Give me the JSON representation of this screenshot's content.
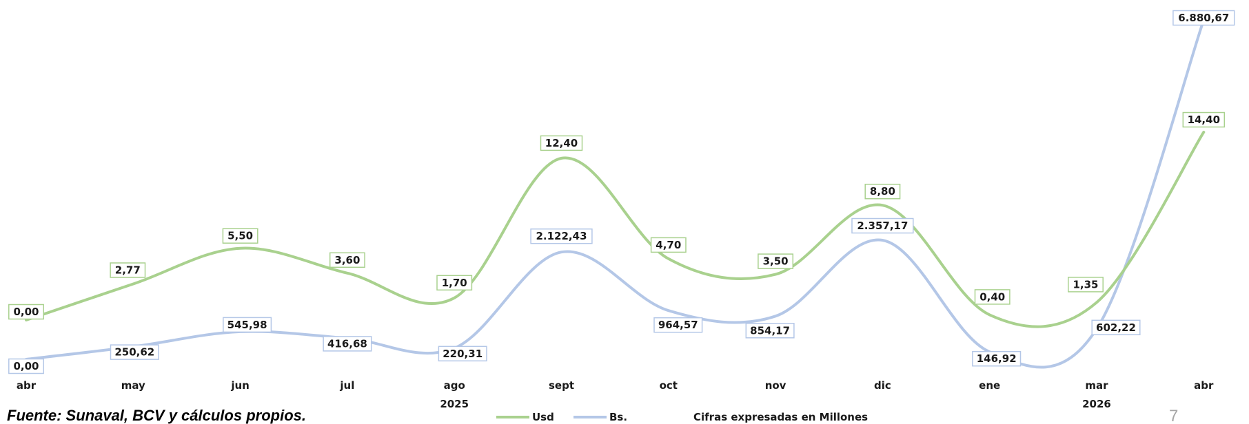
{
  "chart_data": {
    "type": "line",
    "categories": [
      "abr",
      "may",
      "jun",
      "jul",
      "ago",
      "sept",
      "oct",
      "nov",
      "dic",
      "ene",
      "mar",
      "abr"
    ],
    "year_labels": [
      {
        "label": "2025",
        "at_index": 4
      },
      {
        "label": "2026",
        "at_index": 10
      }
    ],
    "series": [
      {
        "name": "Usd",
        "color": "#a9d18e",
        "values": [
          0.0,
          2.77,
          5.5,
          3.6,
          1.7,
          12.4,
          4.7,
          3.5,
          8.8,
          0.4,
          1.35,
          14.4
        ],
        "labels": [
          "0,00",
          "2,77",
          "5,50",
          "3,60",
          "1,70",
          "12,40",
          "4,70",
          "3,50",
          "8,80",
          "0,40",
          "1,35",
          "14,40"
        ]
      },
      {
        "name": "Bs.",
        "color": "#b4c7e7",
        "values": [
          0.0,
          250.62,
          545.98,
          416.68,
          220.31,
          2122.43,
          964.57,
          854.17,
          2357.17,
          146.92,
          602.22,
          6880.67
        ],
        "labels": [
          "0,00",
          "250,62",
          "545,98",
          "416,68",
          "220,31",
          "2.122,43",
          "964,57",
          "854,17",
          "2.357,17",
          "146,92",
          "602,22",
          "6.880,67"
        ]
      }
    ],
    "legend_position": "bottom",
    "grid": false,
    "annotation": "Cifras expresadas en Millones"
  },
  "footer": {
    "source": "Fuente: Sunaval, BCV y cálculos propios.",
    "page_number": "7"
  }
}
